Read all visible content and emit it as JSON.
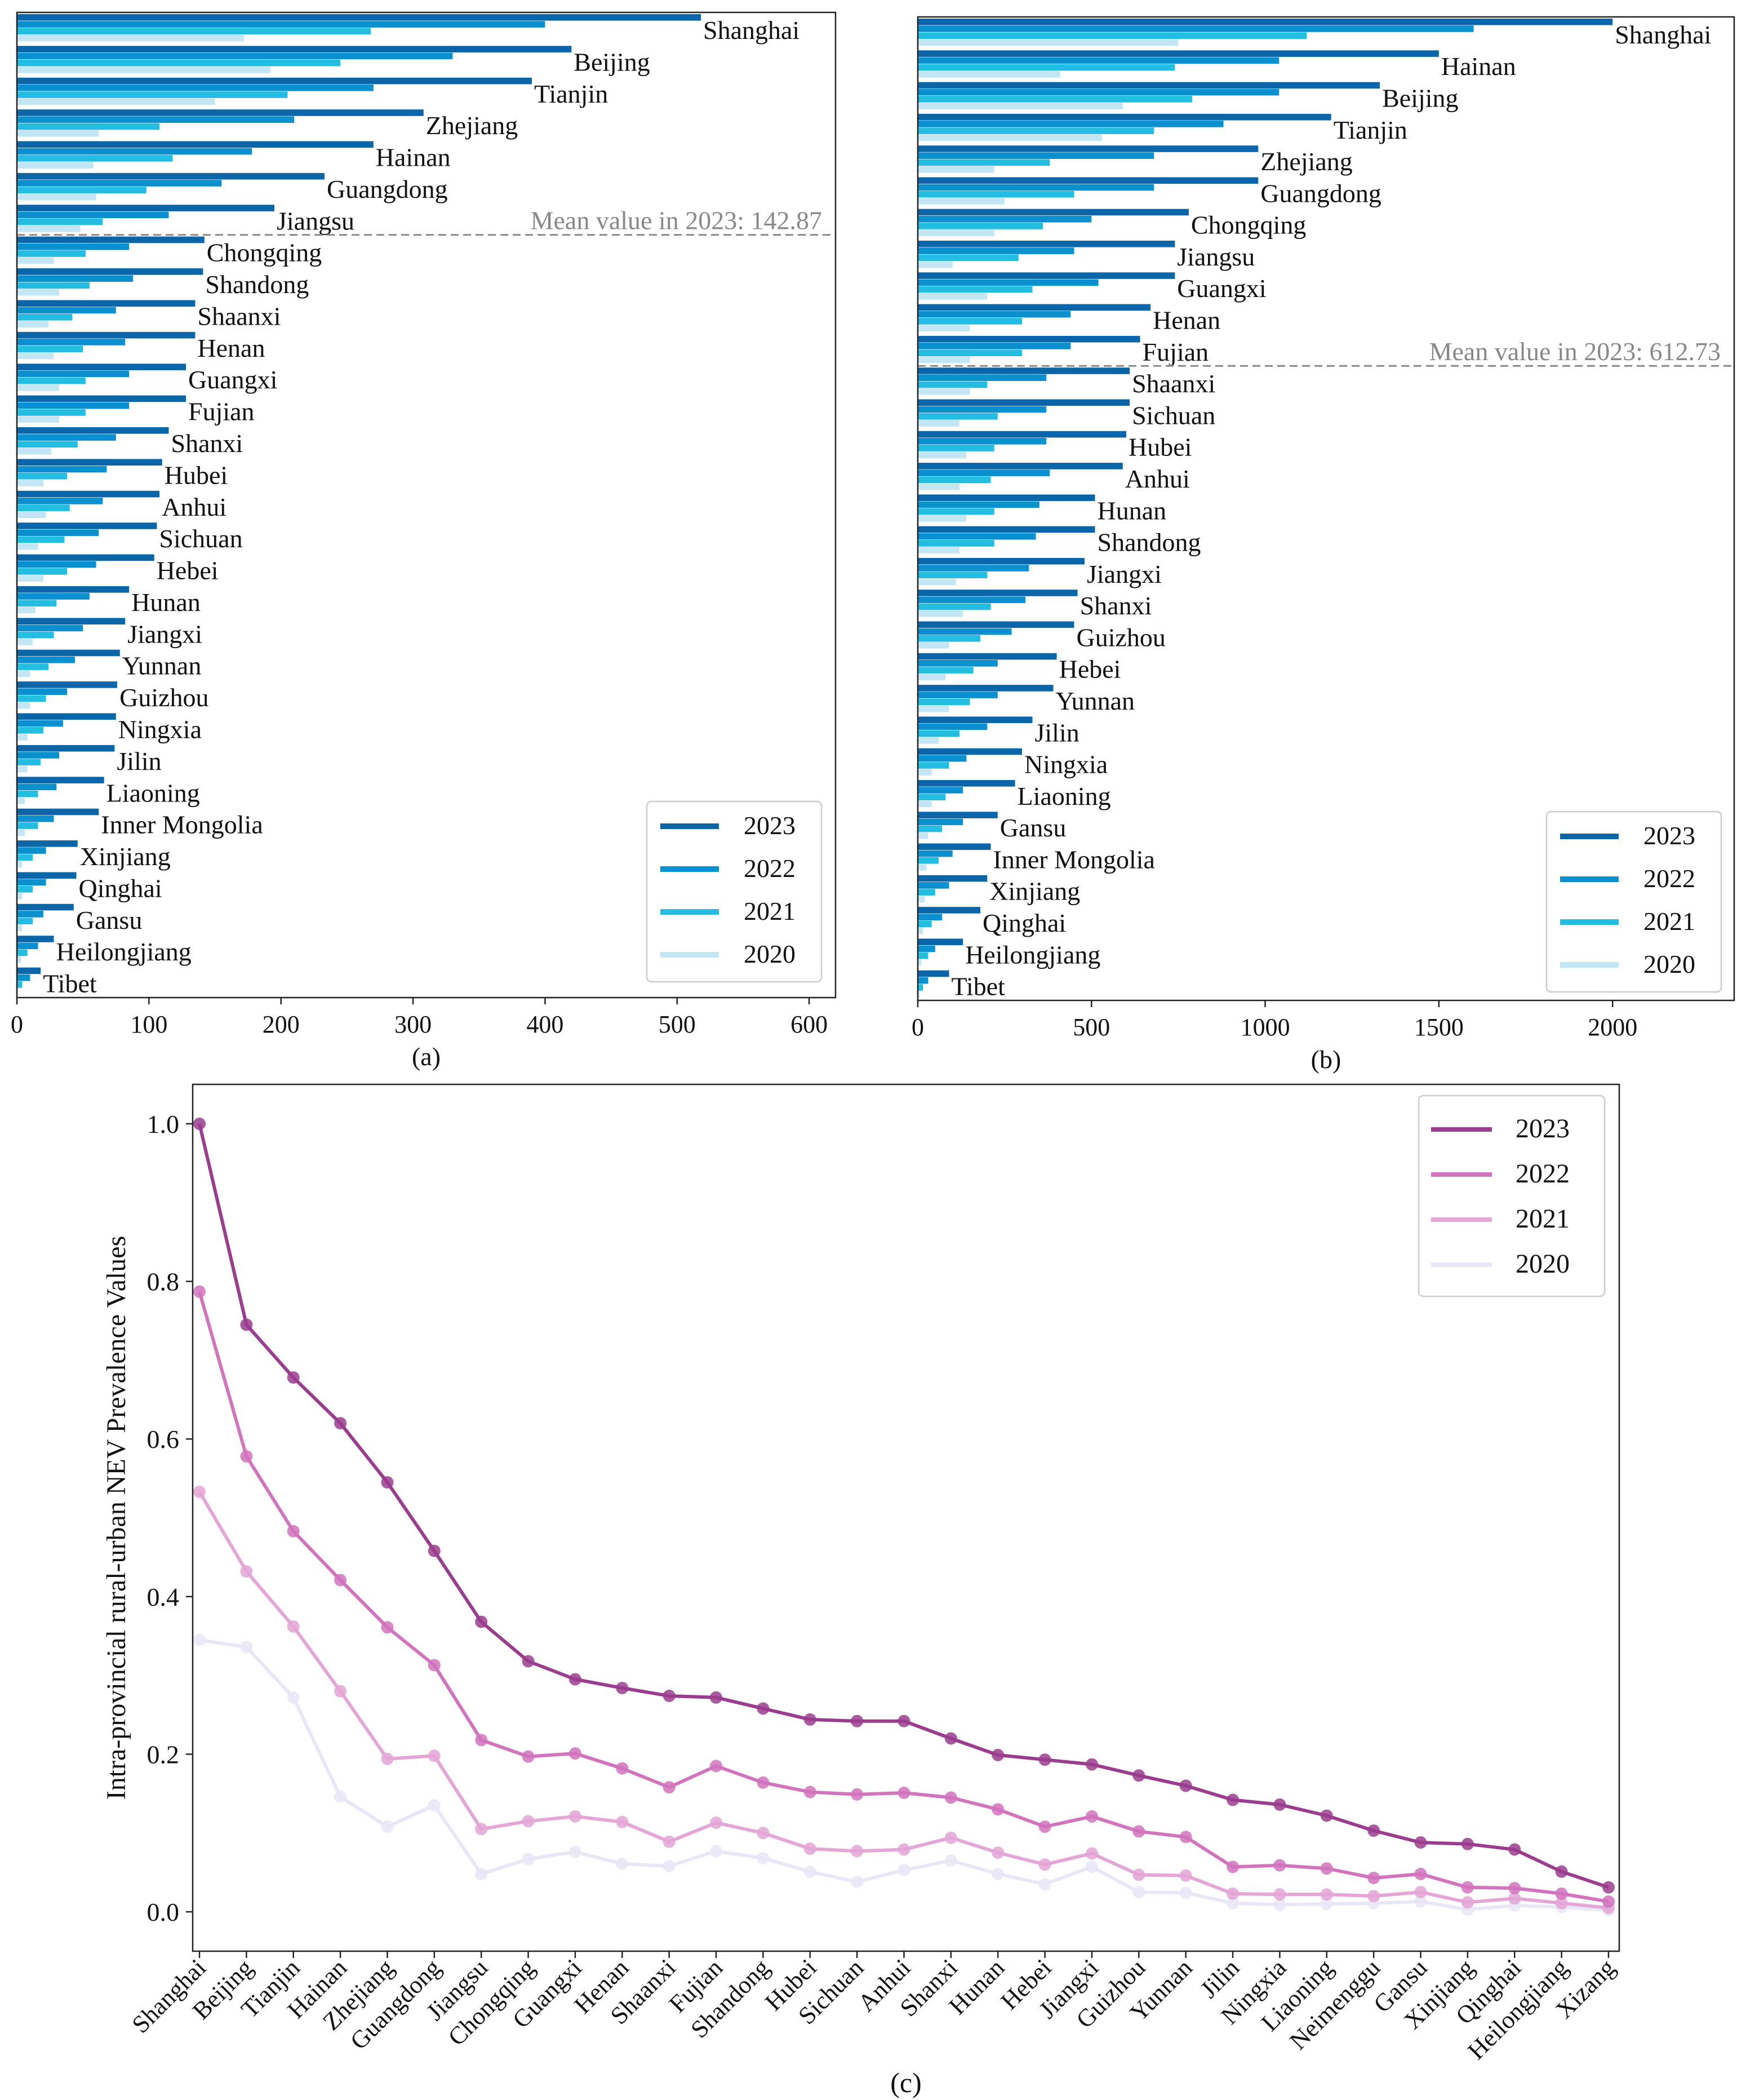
{
  "figure": {
    "colors": {
      "bar2023": "#0a66a8",
      "bar2022": "#0a8fcf",
      "bar2021": "#22bde0",
      "bar2020": "#c2e6f3",
      "line2023": "#9b3d8e",
      "line2022": "#d173bd",
      "line2021": "#e3a6d6",
      "line2020": "#e9e6f6",
      "meanLine": "#888888"
    }
  },
  "chart_data": [
    {
      "id": "a",
      "type": "bar",
      "orientation": "horizontal",
      "subcaption": "(a)",
      "xlim": [
        0,
        620
      ],
      "xticks": [
        0,
        100,
        200,
        300,
        400,
        500,
        600
      ],
      "mean_label": "Mean value in 2023: 142.87",
      "mean_value": 142.87,
      "mean_after_index": 6,
      "legend": {
        "placement": "bottom-right",
        "entries": [
          "2023",
          "2022",
          "2021",
          "2020"
        ]
      },
      "categories": [
        "Shanghai",
        "Beijing",
        "Tianjin",
        "Zhejiang",
        "Hainan",
        "Guangdong",
        "Jiangsu",
        "Chongqing",
        "Shandong",
        "Shaanxi",
        "Henan",
        "Guangxi",
        "Fujian",
        "Shanxi",
        "Hubei",
        "Anhui",
        "Sichuan",
        "Hebei",
        "Hunan",
        "Jiangxi",
        "Yunnan",
        "Guizhou",
        "Ningxia",
        "Jilin",
        "Liaoning",
        "Inner Mongolia",
        "Xinjiang",
        "Qinghai",
        "Gansu",
        "Heilongjiang",
        "Tibet"
      ],
      "series": [
        {
          "name": "2023",
          "values": [
            518,
            420,
            390,
            308,
            270,
            233,
            195,
            142,
            141,
            135,
            135,
            128,
            128,
            115,
            110,
            108,
            106,
            104,
            85,
            82,
            78,
            76,
            75,
            74,
            66,
            62,
            46,
            45,
            43,
            28,
            18
          ]
        },
        {
          "name": "2022",
          "values": [
            400,
            330,
            270,
            210,
            178,
            155,
            115,
            85,
            88,
            75,
            82,
            85,
            85,
            75,
            68,
            65,
            62,
            60,
            55,
            50,
            44,
            38,
            35,
            32,
            30,
            28,
            22,
            22,
            20,
            16,
            10
          ]
        },
        {
          "name": "2021",
          "values": [
            268,
            245,
            205,
            108,
            118,
            98,
            65,
            52,
            55,
            42,
            50,
            52,
            52,
            46,
            38,
            40,
            36,
            38,
            30,
            28,
            24,
            22,
            20,
            18,
            16,
            16,
            12,
            12,
            12,
            8,
            4
          ]
        },
        {
          "name": "2020",
          "values": [
            172,
            192,
            150,
            62,
            58,
            60,
            48,
            28,
            32,
            24,
            28,
            32,
            32,
            26,
            20,
            22,
            16,
            20,
            14,
            12,
            10,
            10,
            8,
            8,
            6,
            6,
            4,
            4,
            4,
            3,
            1
          ]
        }
      ]
    },
    {
      "id": "b",
      "type": "bar",
      "orientation": "horizontal",
      "subcaption": "(b)",
      "xlim": [
        0,
        2350
      ],
      "xticks": [
        0,
        500,
        1000,
        1500,
        2000
      ],
      "mean_label": "Mean value in 2023: 612.73",
      "mean_value": 612.73,
      "mean_after_index": 10,
      "legend": {
        "placement": "bottom-right",
        "entries": [
          "2023",
          "2022",
          "2021",
          "2020"
        ]
      },
      "categories": [
        "Shanghai",
        "Hainan",
        "Beijing",
        "Tianjin",
        "Zhejiang",
        "Guangdong",
        "Chongqing",
        "Jiangsu",
        "Guangxi",
        "Henan",
        "Fujian",
        "Shaanxi",
        "Sichuan",
        "Hubei",
        "Anhui",
        "Hunan",
        "Shandong",
        "Jiangxi",
        "Shanxi",
        "Guizhou",
        "Hebei",
        "Yunnan",
        "Jilin",
        "Ningxia",
        "Liaoning",
        "Gansu",
        "Inner Mongolia",
        "Xinjiang",
        "Qinghai",
        "Heilongjiang",
        "Tibet"
      ],
      "series": [
        {
          "name": "2023",
          "values": [
            2000,
            1500,
            1330,
            1190,
            980,
            980,
            780,
            740,
            740,
            670,
            640,
            610,
            610,
            600,
            590,
            510,
            510,
            480,
            460,
            450,
            400,
            390,
            330,
            300,
            280,
            230,
            210,
            200,
            180,
            130,
            90
          ]
        },
        {
          "name": "2022",
          "values": [
            1600,
            1040,
            1040,
            880,
            680,
            680,
            500,
            450,
            520,
            440,
            440,
            370,
            370,
            370,
            380,
            350,
            340,
            320,
            310,
            270,
            230,
            230,
            200,
            140,
            130,
            130,
            100,
            90,
            70,
            50,
            30
          ]
        },
        {
          "name": "2021",
          "values": [
            1120,
            740,
            790,
            680,
            380,
            450,
            360,
            290,
            330,
            300,
            300,
            200,
            230,
            220,
            210,
            220,
            220,
            200,
            210,
            180,
            160,
            150,
            120,
            90,
            80,
            70,
            60,
            50,
            40,
            30,
            15
          ]
        },
        {
          "name": "2020",
          "values": [
            750,
            410,
            590,
            530,
            220,
            250,
            220,
            100,
            200,
            150,
            150,
            150,
            120,
            140,
            120,
            140,
            120,
            110,
            130,
            90,
            80,
            90,
            60,
            40,
            40,
            30,
            25,
            20,
            15,
            10,
            5
          ]
        }
      ]
    },
    {
      "id": "c",
      "type": "line",
      "subcaption": "(c)",
      "ylabel": "Intra-provincial rural-urban NEV Prevalence Values",
      "ylim": [
        -0.05,
        1.05
      ],
      "yticks": [
        "1.0",
        "0.8",
        "0.6",
        "0.4",
        "0.2",
        "0.0"
      ],
      "legend": {
        "placement": "top-right",
        "entries": [
          "2023",
          "2022",
          "2021",
          "2020"
        ]
      },
      "categories": [
        "Shanghai",
        "Beijing",
        "Tianjin",
        "Hainan",
        "Zhejiang",
        "Guangdong",
        "Jiangsu",
        "Chongqing",
        "Guangxi",
        "Henan",
        "Shaanxi",
        "Fujian",
        "Shandong",
        "Hubei",
        "Sichuan",
        "Anhui",
        "Shanxi",
        "Hunan",
        "Hebei",
        "Jiangxi",
        "Guizhou",
        "Yunnan",
        "Jilin",
        "Ningxia",
        "Liaoning",
        "Neimenggu",
        "Gansu",
        "Xinjiang",
        "Qinghai",
        "Heilongjiang",
        "Xizang"
      ],
      "series": [
        {
          "name": "2023",
          "values": [
            1.0,
            0.745,
            0.678,
            0.62,
            0.545,
            0.458,
            0.368,
            0.318,
            0.295,
            0.284,
            0.274,
            0.272,
            0.258,
            0.244,
            0.242,
            0.242,
            0.22,
            0.199,
            0.193,
            0.187,
            0.173,
            0.16,
            0.142,
            0.136,
            0.122,
            0.103,
            0.088,
            0.086,
            0.079,
            0.051,
            0.031
          ]
        },
        {
          "name": "2022",
          "values": [
            0.787,
            0.578,
            0.483,
            0.421,
            0.361,
            0.313,
            0.218,
            0.197,
            0.201,
            0.182,
            0.158,
            0.185,
            0.164,
            0.152,
            0.149,
            0.151,
            0.145,
            0.13,
            0.108,
            0.121,
            0.102,
            0.095,
            0.057,
            0.059,
            0.055,
            0.043,
            0.048,
            0.031,
            0.03,
            0.023,
            0.013
          ]
        },
        {
          "name": "2021",
          "values": [
            0.533,
            0.432,
            0.362,
            0.28,
            0.194,
            0.198,
            0.105,
            0.115,
            0.121,
            0.114,
            0.089,
            0.113,
            0.1,
            0.08,
            0.077,
            0.079,
            0.094,
            0.075,
            0.06,
            0.074,
            0.047,
            0.046,
            0.023,
            0.022,
            0.022,
            0.02,
            0.025,
            0.012,
            0.017,
            0.011,
            0.005
          ]
        },
        {
          "name": "2020",
          "values": [
            0.345,
            0.336,
            0.272,
            0.146,
            0.108,
            0.135,
            0.048,
            0.067,
            0.076,
            0.061,
            0.058,
            0.077,
            0.068,
            0.051,
            0.038,
            0.053,
            0.065,
            0.048,
            0.035,
            0.057,
            0.025,
            0.024,
            0.011,
            0.009,
            0.01,
            0.011,
            0.013,
            0.003,
            0.008,
            0.006,
            0.002
          ]
        }
      ]
    }
  ]
}
